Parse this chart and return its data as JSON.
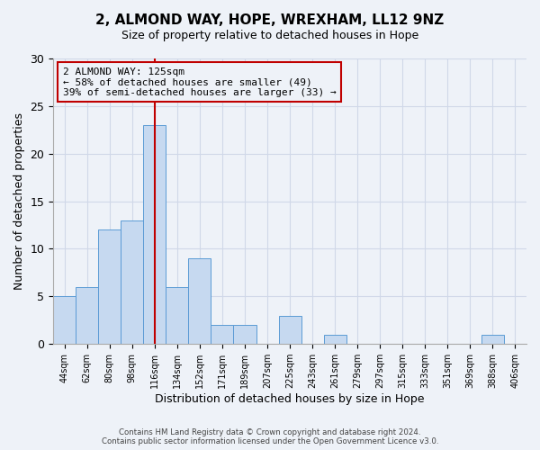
{
  "title": "2, ALMOND WAY, HOPE, WREXHAM, LL12 9NZ",
  "subtitle": "Size of property relative to detached houses in Hope",
  "xlabel": "Distribution of detached houses by size in Hope",
  "ylabel": "Number of detached properties",
  "bin_labels": [
    "44sqm",
    "62sqm",
    "80sqm",
    "98sqm",
    "116sqm",
    "134sqm",
    "152sqm",
    "171sqm",
    "189sqm",
    "207sqm",
    "225sqm",
    "243sqm",
    "261sqm",
    "279sqm",
    "297sqm",
    "315sqm",
    "333sqm",
    "351sqm",
    "369sqm",
    "388sqm",
    "406sqm"
  ],
  "bar_values": [
    5,
    6,
    12,
    13,
    23,
    6,
    9,
    2,
    2,
    0,
    3,
    0,
    1,
    0,
    0,
    0,
    0,
    0,
    0,
    1,
    0
  ],
  "bar_color": "#c6d9f0",
  "bar_edge_color": "#5b9bd5",
  "ylim": [
    0,
    30
  ],
  "yticks": [
    0,
    5,
    10,
    15,
    20,
    25,
    30
  ],
  "vline_x": 4,
  "vline_color": "#c00000",
  "annotation_title": "2 ALMOND WAY: 125sqm",
  "annotation_line1": "← 58% of detached houses are smaller (49)",
  "annotation_line2": "39% of semi-detached houses are larger (33) →",
  "annotation_box_color": "#c00000",
  "footer_line1": "Contains HM Land Registry data © Crown copyright and database right 2024.",
  "footer_line2": "Contains public sector information licensed under the Open Government Licence v3.0.",
  "grid_color": "#d0d8e8",
  "bg_color": "#eef2f8"
}
